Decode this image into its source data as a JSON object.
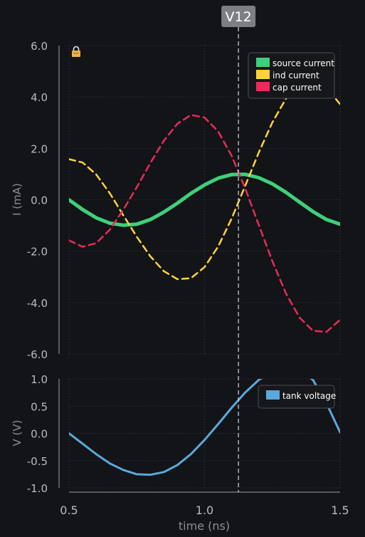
{
  "chart_data": [
    {
      "type": "line",
      "title": "",
      "xlabel": "",
      "ylabel": "I (mA)",
      "xlim": [
        0.5,
        1.5
      ],
      "ylim": [
        -6.0,
        6.0
      ],
      "yticks": [
        {
          "value": 6.0,
          "label": "6.0"
        },
        {
          "value": 4.0,
          "label": "4.0"
        },
        {
          "value": 2.0,
          "label": "2.0"
        },
        {
          "value": 0.0,
          "label": "0.0"
        },
        {
          "value": -2.0,
          "label": "-2.0"
        },
        {
          "value": -4.0,
          "label": "-4.0"
        },
        {
          "value": -6.0,
          "label": "-6.0"
        }
      ],
      "grid": true,
      "legend_position": "top-right",
      "x": [
        0.5,
        0.55,
        0.6,
        0.65,
        0.7,
        0.75,
        0.8,
        0.85,
        0.9,
        0.95,
        1.0,
        1.05,
        1.1,
        1.15,
        1.2,
        1.25,
        1.3,
        1.35,
        1.4,
        1.45,
        1.5
      ],
      "series": [
        {
          "name": "source current",
          "color": "#3fcf7c",
          "style": "solid",
          "values": [
            0.0,
            -0.38,
            -0.7,
            -0.91,
            -0.99,
            -0.95,
            -0.77,
            -0.48,
            -0.13,
            0.25,
            0.58,
            0.84,
            0.98,
            0.99,
            0.86,
            0.62,
            0.29,
            -0.09,
            -0.46,
            -0.77,
            -0.95
          ]
        },
        {
          "name": "ind current",
          "color": "#ffd43b",
          "style": "dashed",
          "values": [
            1.58,
            1.45,
            0.99,
            0.26,
            -0.6,
            -1.44,
            -2.2,
            -2.78,
            -3.09,
            -3.05,
            -2.62,
            -1.82,
            -0.73,
            0.54,
            1.84,
            3.01,
            3.93,
            4.49,
            4.64,
            4.37,
            3.72
          ]
        },
        {
          "name": "cap current",
          "color": "#e82c5a",
          "style": "dashed",
          "values": [
            -1.58,
            -1.83,
            -1.69,
            -1.17,
            -0.39,
            0.49,
            1.43,
            2.3,
            2.96,
            3.3,
            3.2,
            2.66,
            1.71,
            0.45,
            -0.98,
            -2.39,
            -3.64,
            -4.58,
            -5.1,
            -5.14,
            -4.67
          ]
        }
      ],
      "annotations": [
        {
          "text": "V12",
          "x": 1.125
        }
      ]
    },
    {
      "type": "line",
      "title": "",
      "xlabel": "time (ns)",
      "ylabel": "V (V)",
      "xlim": [
        0.5,
        1.5
      ],
      "ylim": [
        -1.0,
        1.0
      ],
      "xticks": [
        {
          "value": 0.5,
          "label": "0.5"
        },
        {
          "value": 1.0,
          "label": "1.0"
        },
        {
          "value": 1.5,
          "label": "1.5"
        }
      ],
      "yticks": [
        {
          "value": 1.0,
          "label": "1.0"
        },
        {
          "value": 0.5,
          "label": "0.5"
        },
        {
          "value": 0.0,
          "label": "0.0"
        },
        {
          "value": -0.5,
          "label": "-0.5"
        },
        {
          "value": -1.0,
          "label": "-1.0"
        }
      ],
      "grid": true,
      "legend_position": "top-right",
      "x": [
        0.5,
        0.55,
        0.6,
        0.65,
        0.7,
        0.75,
        0.8,
        0.85,
        0.9,
        0.95,
        1.0,
        1.05,
        1.1,
        1.15,
        1.2,
        1.25,
        1.3,
        1.35,
        1.4,
        1.45,
        1.5
      ],
      "series": [
        {
          "name": "tank voltage",
          "color": "#5aa9dc",
          "style": "solid",
          "values": [
            0.0,
            -0.19,
            -0.38,
            -0.55,
            -0.67,
            -0.75,
            -0.76,
            -0.71,
            -0.58,
            -0.38,
            -0.12,
            0.17,
            0.47,
            0.75,
            0.98,
            1.13,
            1.2,
            1.17,
            0.98,
            0.55,
            0.02
          ]
        }
      ]
    }
  ]
}
